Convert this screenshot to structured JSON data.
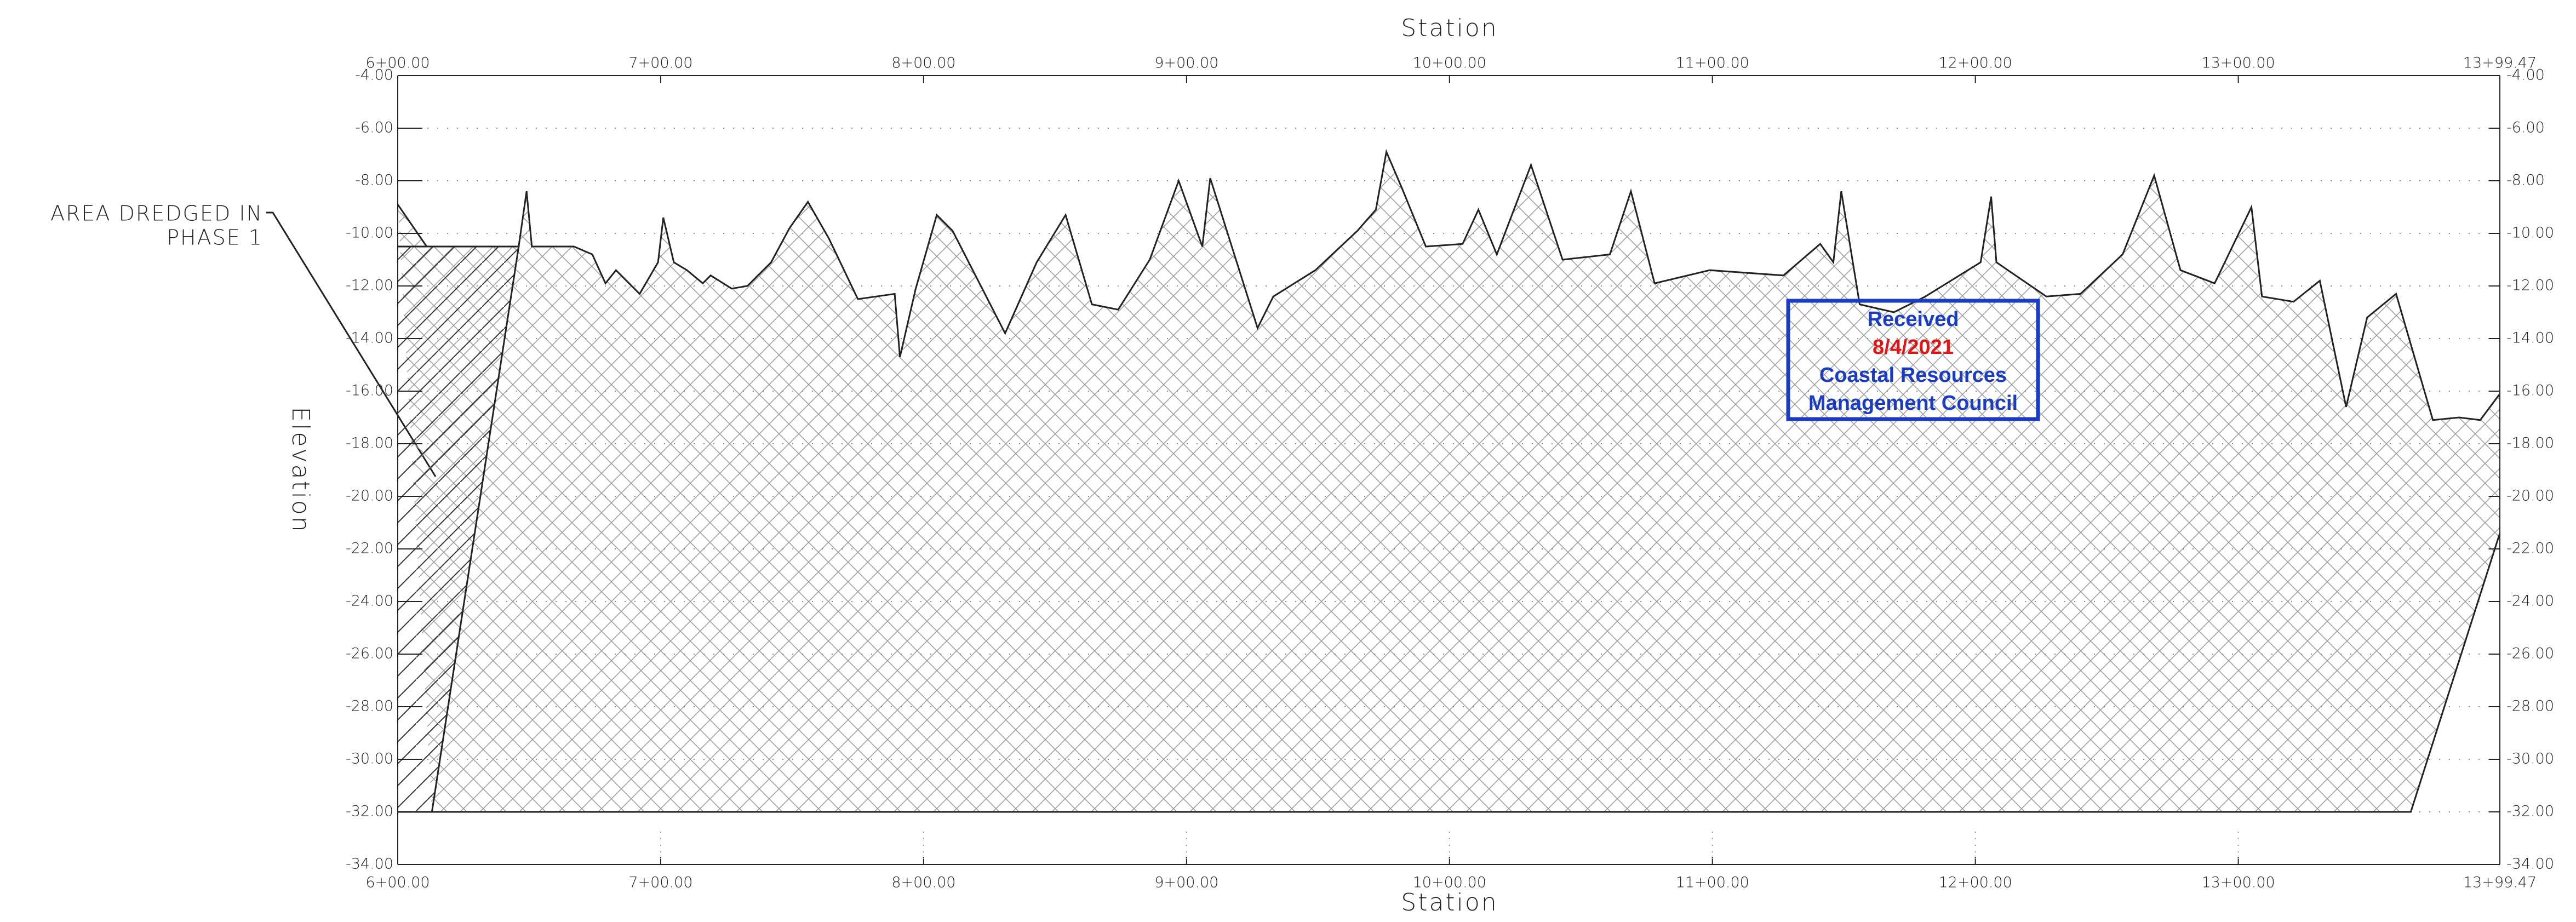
{
  "chart_data": {
    "type": "profile",
    "xlabel": "Station",
    "ylabel": "Elevation",
    "xlim": [
      600,
      1399.47
    ],
    "ylim": [
      -34,
      -4
    ],
    "xticks": [
      {
        "value": 600,
        "label": "6+00.00"
      },
      {
        "value": 700,
        "label": "7+00.00"
      },
      {
        "value": 800,
        "label": "8+00.00"
      },
      {
        "value": 900,
        "label": "9+00.00"
      },
      {
        "value": 1000,
        "label": "10+00.00"
      },
      {
        "value": 1100,
        "label": "11+00.00"
      },
      {
        "value": 1200,
        "label": "12+00.00"
      },
      {
        "value": 1300,
        "label": "13+00.00"
      },
      {
        "value": 1399.47,
        "label": "13+99.47"
      }
    ],
    "yticks": [
      {
        "value": -4,
        "label": "-4.00"
      },
      {
        "value": -6,
        "label": "-6.00"
      },
      {
        "value": -8,
        "label": "-8.00"
      },
      {
        "value": -10,
        "label": "-10.00"
      },
      {
        "value": -12,
        "label": "-12.00"
      },
      {
        "value": -14,
        "label": "-14.00"
      },
      {
        "value": -16,
        "label": "-16.00"
      },
      {
        "value": -18,
        "label": "-18.00"
      },
      {
        "value": -20,
        "label": "-20.00"
      },
      {
        "value": -22,
        "label": "-22.00"
      },
      {
        "value": -24,
        "label": "-24.00"
      },
      {
        "value": -26,
        "label": "-26.00"
      },
      {
        "value": -28,
        "label": "-28.00"
      },
      {
        "value": -30,
        "label": "-30.00"
      },
      {
        "value": -32,
        "label": "-32.00"
      },
      {
        "value": -34,
        "label": "-34.00"
      }
    ],
    "grid": true,
    "series": [
      {
        "color": "#222222",
        "x": [
          600,
          611,
          646,
          649,
          651,
          667,
          674,
          679,
          683,
          692,
          699,
          701,
          705,
          710,
          716,
          719,
          727,
          733,
          742,
          749,
          756,
          764,
          775,
          782,
          789,
          791,
          797,
          805,
          811,
          831,
          843,
          854,
          864,
          874,
          886,
          897,
          906,
          909,
          927,
          933,
          949,
          965,
          972,
          976,
          982,
          991,
          1005,
          1011,
          1018,
          1031,
          1043,
          1061,
          1069,
          1078,
          1099,
          1127,
          1141,
          1146,
          1149,
          1156,
          1169,
          1181,
          1202,
          1206,
          1208,
          1227,
          1240,
          1256,
          1268,
          1278,
          1291,
          1305,
          1309,
          1321,
          1331,
          1341,
          1349,
          1360,
          1374,
          1384,
          1392,
          1399.47
        ],
        "values": [
          -8.9,
          -10.5,
          -10.5,
          -8.4,
          -10.5,
          -10.5,
          -10.8,
          -11.9,
          -11.4,
          -12.3,
          -11.1,
          -9.4,
          -11.1,
          -11.4,
          -11.9,
          -11.6,
          -12.1,
          -12,
          -11.1,
          -9.8,
          -8.8,
          -10.2,
          -12.5,
          -12.4,
          -12.3,
          -14.7,
          -12.1,
          -9.3,
          -9.9,
          -13.8,
          -11.1,
          -9.3,
          -12.7,
          -12.9,
          -11,
          -8,
          -10.5,
          -7.9,
          -13.6,
          -12.4,
          -11.4,
          -9.9,
          -9.1,
          -6.9,
          -8.3,
          -10.5,
          -10.4,
          -9.1,
          -10.8,
          -7.4,
          -11,
          -10.8,
          -8.4,
          -11.9,
          -11.4,
          -11.6,
          -10.4,
          -11.1,
          -8.4,
          -12.7,
          -13,
          -12.4,
          -11.1,
          -8.6,
          -11.1,
          -12.4,
          -12.3,
          -10.8,
          -7.8,
          -11.4,
          -11.9,
          -9,
          -12.4,
          -12.6,
          -11.8,
          -16.6,
          -13.2,
          -12.3,
          -17.1,
          -17,
          -17.1,
          -16.1
        ]
      },
      {
        "color": "#222222",
        "x": [
          613,
          1365.6,
          1399.47
        ],
        "values": [
          -32,
          -32,
          -21.4
        ]
      },
      {
        "color": "#222222",
        "x": [
          600,
          646,
          613,
          600
        ],
        "values": [
          -10.5,
          -10.5,
          -32,
          -32
        ]
      }
    ],
    "annotation": [
      "AREA DREDGED IN",
      "PHASE 1"
    ],
    "stamp": [
      "Received",
      "8/4/2021",
      "Coastal Resources",
      "Management Council"
    ]
  }
}
